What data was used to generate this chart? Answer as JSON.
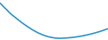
{
  "x": [
    0,
    1,
    2,
    3,
    4,
    5,
    6,
    7,
    8,
    9,
    10,
    11,
    12,
    13,
    14,
    15,
    16,
    17,
    18,
    19,
    20
  ],
  "y": [
    20132560,
    17500000,
    15000000,
    13000000,
    11000000,
    9200000,
    7600000,
    6200000,
    5100000,
    4300000,
    3800000,
    3600000,
    3700000,
    3900000,
    4200000,
    4600000,
    5100000,
    5700000,
    6400000,
    7200000,
    8100000
  ],
  "line_color": "#3399cc",
  "line_width": 1.2,
  "background_color": "#ffffff",
  "ylim_min": 2800000,
  "ylim_max": 21500000
}
